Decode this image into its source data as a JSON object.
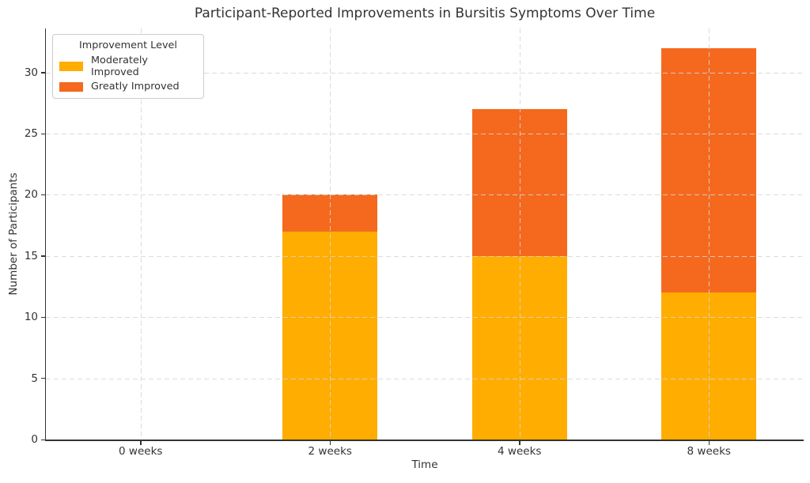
{
  "chart_data": {
    "type": "bar",
    "stacked": true,
    "title": "Participant-Reported Improvements in Bursitis Symptoms Over Time",
    "xlabel": "Time",
    "ylabel": "Number of Participants",
    "categories": [
      "0 weeks",
      "2 weeks",
      "4 weeks",
      "8 weeks"
    ],
    "series": [
      {
        "name": "Moderately Improved",
        "color": "#FFAD00",
        "values": [
          0,
          17,
          15,
          12
        ]
      },
      {
        "name": "Greatly Improved",
        "color": "#F4691E",
        "values": [
          0,
          3,
          12,
          20
        ]
      }
    ],
    "legend": {
      "title": "Improvement Level",
      "position": "upper-left"
    },
    "yticks": [
      0,
      5,
      10,
      15,
      20,
      25,
      30
    ],
    "ylim": [
      0,
      33.6
    ],
    "grid": true,
    "grid_style": "dashed",
    "grid_above_bars": true,
    "background": "#FFFFFF",
    "text_color": "#333333",
    "grid_color": "#D6D6D6",
    "spine_color": "#333333"
  }
}
